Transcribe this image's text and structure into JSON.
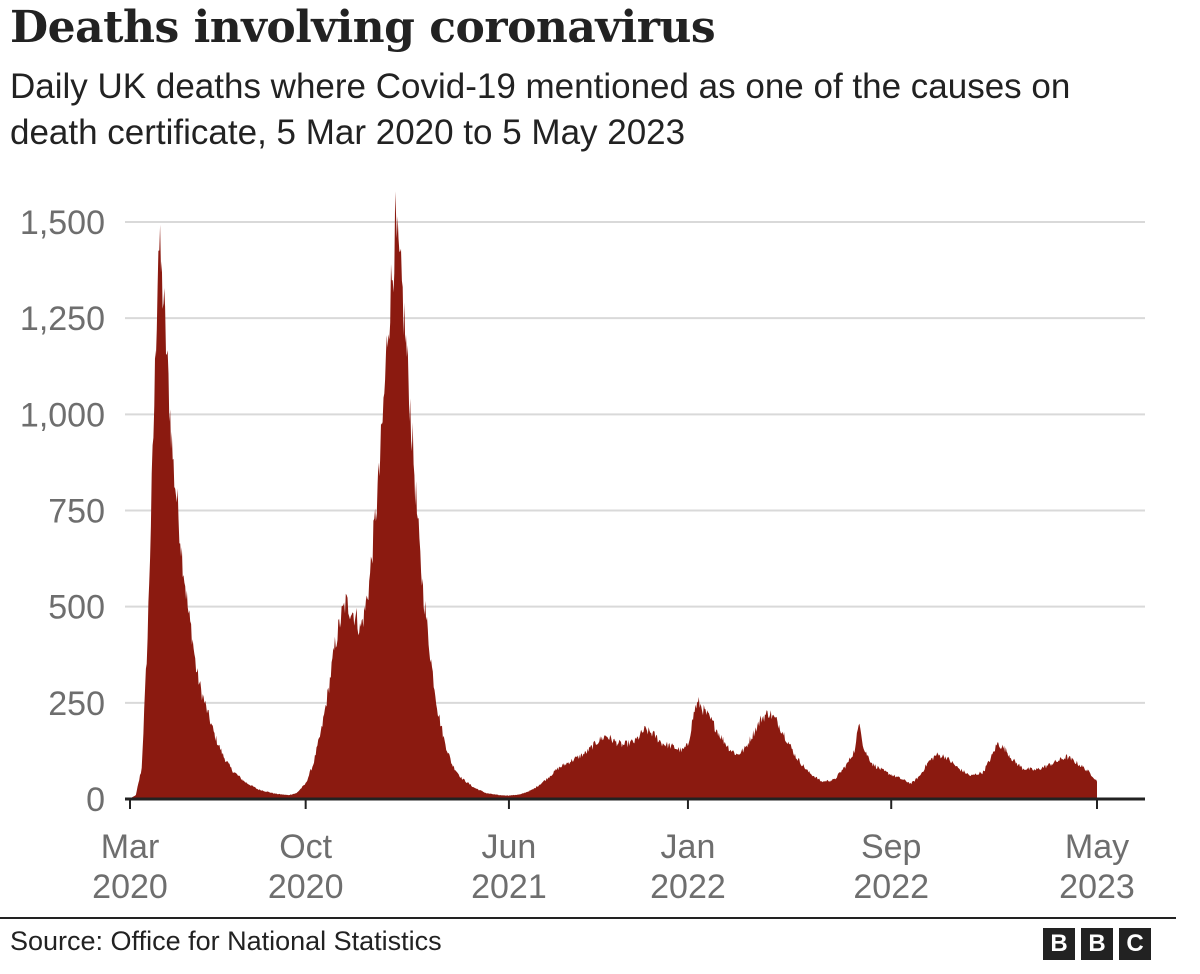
{
  "header": {
    "title": "Deaths involving coronavirus",
    "subtitle": "Daily UK deaths where Covid-19 mentioned as one of the causes on death certificate, 5 Mar 2020 to 5 May 2023"
  },
  "footer": {
    "source": "Source: Office for National Statistics",
    "logo": [
      "B",
      "B",
      "C"
    ]
  },
  "colors": {
    "area": "#8b1a10",
    "grid": "#d9d9d9",
    "axis": "#222222",
    "tick_text": "#6e6e6e",
    "text": "#222222"
  },
  "chart_data": {
    "type": "area",
    "title": "Deaths involving coronavirus",
    "subtitle": "Daily UK deaths where Covid-19 mentioned as one of the causes on death certificate, 5 Mar 2020 to 5 May 2023",
    "xlabel": "",
    "ylabel": "",
    "x_range": [
      "2020-03-05",
      "2023-05-05"
    ],
    "ylim": [
      0,
      1500
    ],
    "grid": true,
    "y_ticks": [
      {
        "value": 0,
        "label": "0"
      },
      {
        "value": 250,
        "label": "250"
      },
      {
        "value": 500,
        "label": "500"
      },
      {
        "value": 750,
        "label": "750"
      },
      {
        "value": 1000,
        "label": "1,000"
      },
      {
        "value": 1250,
        "label": "1,250"
      },
      {
        "value": 1500,
        "label": "1,500"
      }
    ],
    "x_ticks": [
      {
        "date": "2020-03-05",
        "month": "Mar",
        "year": "2020"
      },
      {
        "date": "2020-10-01",
        "month": "Oct",
        "year": "2020"
      },
      {
        "date": "2021-06-01",
        "month": "Jun",
        "year": "2021"
      },
      {
        "date": "2022-01-01",
        "month": "Jan",
        "year": "2022"
      },
      {
        "date": "2022-09-01",
        "month": "Sep",
        "year": "2022"
      },
      {
        "date": "2023-05-05",
        "month": "May",
        "year": "2023"
      }
    ],
    "series": [
      {
        "name": "Daily deaths",
        "points": [
          [
            "2020-03-05",
            1
          ],
          [
            "2020-03-12",
            10
          ],
          [
            "2020-03-19",
            80
          ],
          [
            "2020-03-26",
            420
          ],
          [
            "2020-04-02",
            950
          ],
          [
            "2020-04-05",
            1200
          ],
          [
            "2020-04-08",
            1450
          ],
          [
            "2020-04-10",
            1400
          ],
          [
            "2020-04-14",
            1300
          ],
          [
            "2020-04-18",
            1150
          ],
          [
            "2020-04-22",
            1000
          ],
          [
            "2020-04-26",
            860
          ],
          [
            "2020-05-01",
            760
          ],
          [
            "2020-05-06",
            640
          ],
          [
            "2020-05-10",
            560
          ],
          [
            "2020-05-14",
            480
          ],
          [
            "2020-05-18",
            430
          ],
          [
            "2020-05-23",
            340
          ],
          [
            "2020-05-28",
            290
          ],
          [
            "2020-06-05",
            230
          ],
          [
            "2020-06-15",
            160
          ],
          [
            "2020-06-25",
            110
          ],
          [
            "2020-07-05",
            75
          ],
          [
            "2020-07-20",
            45
          ],
          [
            "2020-08-05",
            25
          ],
          [
            "2020-08-25",
            14
          ],
          [
            "2020-09-10",
            10
          ],
          [
            "2020-09-20",
            15
          ],
          [
            "2020-10-01",
            40
          ],
          [
            "2020-10-10",
            90
          ],
          [
            "2020-10-20",
            180
          ],
          [
            "2020-10-28",
            280
          ],
          [
            "2020-11-05",
            400
          ],
          [
            "2020-11-12",
            470
          ],
          [
            "2020-11-18",
            510
          ],
          [
            "2020-11-25",
            490
          ],
          [
            "2020-12-01",
            470
          ],
          [
            "2020-12-05",
            440
          ],
          [
            "2020-12-10",
            480
          ],
          [
            "2020-12-16",
            560
          ],
          [
            "2020-12-22",
            700
          ],
          [
            "2020-12-28",
            850
          ],
          [
            "2021-01-03",
            1050
          ],
          [
            "2021-01-08",
            1250
          ],
          [
            "2021-01-12",
            1350
          ],
          [
            "2021-01-16",
            1480
          ],
          [
            "2021-01-20",
            1400
          ],
          [
            "2021-01-25",
            1300
          ],
          [
            "2021-01-30",
            1150
          ],
          [
            "2021-02-05",
            950
          ],
          [
            "2021-02-10",
            780
          ],
          [
            "2021-02-15",
            620
          ],
          [
            "2021-02-22",
            470
          ],
          [
            "2021-03-01",
            340
          ],
          [
            "2021-03-08",
            230
          ],
          [
            "2021-03-16",
            150
          ],
          [
            "2021-03-25",
            90
          ],
          [
            "2021-04-05",
            55
          ],
          [
            "2021-04-20",
            30
          ],
          [
            "2021-05-05",
            15
          ],
          [
            "2021-05-20",
            10
          ],
          [
            "2021-06-01",
            9
          ],
          [
            "2021-06-15",
            12
          ],
          [
            "2021-06-30",
            25
          ],
          [
            "2021-07-15",
            50
          ],
          [
            "2021-07-30",
            80
          ],
          [
            "2021-08-15",
            100
          ],
          [
            "2021-09-01",
            120
          ],
          [
            "2021-09-15",
            150
          ],
          [
            "2021-09-25",
            165
          ],
          [
            "2021-10-05",
            150
          ],
          [
            "2021-10-15",
            140
          ],
          [
            "2021-10-30",
            150
          ],
          [
            "2021-11-10",
            180
          ],
          [
            "2021-11-20",
            170
          ],
          [
            "2021-12-01",
            145
          ],
          [
            "2021-12-15",
            135
          ],
          [
            "2021-12-25",
            125
          ],
          [
            "2022-01-01",
            140
          ],
          [
            "2022-01-06",
            200
          ],
          [
            "2022-01-10",
            240
          ],
          [
            "2022-01-14",
            250
          ],
          [
            "2022-01-20",
            230
          ],
          [
            "2022-01-30",
            200
          ],
          [
            "2022-02-10",
            160
          ],
          [
            "2022-02-20",
            130
          ],
          [
            "2022-03-01",
            115
          ],
          [
            "2022-03-10",
            130
          ],
          [
            "2022-03-20",
            170
          ],
          [
            "2022-03-30",
            210
          ],
          [
            "2022-04-08",
            225
          ],
          [
            "2022-04-18",
            200
          ],
          [
            "2022-04-28",
            160
          ],
          [
            "2022-05-10",
            110
          ],
          [
            "2022-05-25",
            70
          ],
          [
            "2022-06-10",
            45
          ],
          [
            "2022-06-25",
            50
          ],
          [
            "2022-07-10",
            90
          ],
          [
            "2022-07-20",
            130
          ],
          [
            "2022-07-25",
            210
          ],
          [
            "2022-07-30",
            130
          ],
          [
            "2022-08-10",
            90
          ],
          [
            "2022-08-25",
            70
          ],
          [
            "2022-09-10",
            55
          ],
          [
            "2022-09-25",
            40
          ],
          [
            "2022-10-05",
            60
          ],
          [
            "2022-10-15",
            95
          ],
          [
            "2022-10-25",
            115
          ],
          [
            "2022-11-05",
            110
          ],
          [
            "2022-11-20",
            80
          ],
          [
            "2022-12-05",
            60
          ],
          [
            "2022-12-20",
            70
          ],
          [
            "2022-12-30",
            110
          ],
          [
            "2023-01-06",
            145
          ],
          [
            "2023-01-15",
            130
          ],
          [
            "2023-01-25",
            100
          ],
          [
            "2023-02-05",
            80
          ],
          [
            "2023-02-20",
            75
          ],
          [
            "2023-03-05",
            85
          ],
          [
            "2023-03-20",
            100
          ],
          [
            "2023-03-30",
            110
          ],
          [
            "2023-04-10",
            95
          ],
          [
            "2023-04-20",
            80
          ],
          [
            "2023-04-30",
            60
          ],
          [
            "2023-05-05",
            45
          ]
        ]
      }
    ]
  }
}
